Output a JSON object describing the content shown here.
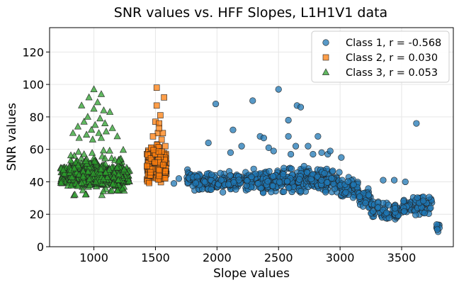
{
  "chart_data": {
    "type": "scatter",
    "title": "SNR values vs. HFF Slopes, L1H1V1 data",
    "xlabel": "Slope values",
    "ylabel": "SNR values",
    "xlim": [
      640,
      3920
    ],
    "ylim": [
      0,
      135
    ],
    "xticks": [
      1000,
      1500,
      2000,
      2500,
      3000,
      3500
    ],
    "yticks": [
      0,
      20,
      40,
      60,
      80,
      100,
      120
    ],
    "grid": true,
    "legend_position": "top-right",
    "series": [
      {
        "name": "Class 1, r = -0.568",
        "marker": "circle",
        "color": "#1f77b4",
        "clusters": [
          {
            "x_range": [
              1750,
              1800
            ],
            "y_range": [
              35,
              50
            ],
            "n": 20
          },
          {
            "x_range": [
              1800,
              1990
            ],
            "y_range": [
              33,
              47
            ],
            "n": 90
          },
          {
            "x_range": [
              2000,
              2200
            ],
            "y_range": [
              32,
              48
            ],
            "n": 80
          },
          {
            "x_range": [
              2230,
              2500
            ],
            "y_range": [
              32,
              50
            ],
            "n": 130
          },
          {
            "x_range": [
              2500,
              2750
            ],
            "y_range": [
              31,
              52
            ],
            "n": 110
          },
          {
            "x_range": [
              2750,
              3000
            ],
            "y_range": [
              31,
              50
            ],
            "n": 100
          },
          {
            "x_range": [
              3000,
              3150
            ],
            "y_range": [
              27,
              44
            ],
            "n": 60
          },
          {
            "x_range": [
              3150,
              3250
            ],
            "y_range": [
              20,
              38
            ],
            "n": 40
          },
          {
            "x_range": [
              3250,
              3480
            ],
            "y_range": [
              12,
              30
            ],
            "n": 70
          },
          {
            "x_range": [
              3500,
              3600
            ],
            "y_range": [
              17,
              33
            ],
            "n": 35
          },
          {
            "x_range": [
              3600,
              3750
            ],
            "y_range": [
              16,
              35
            ],
            "n": 45
          },
          {
            "x_range": [
              3780,
              3810
            ],
            "y_range": [
              7,
              16
            ],
            "n": 8
          }
        ],
        "points": [
          [
            1990,
            88
          ],
          [
            2130,
            72
          ],
          [
            2290,
            90
          ],
          [
            2500,
            97
          ],
          [
            2650,
            87
          ],
          [
            2680,
            86
          ],
          [
            3620,
            76
          ],
          [
            2350,
            68
          ],
          [
            2380,
            67
          ],
          [
            2580,
            68
          ],
          [
            2820,
            68
          ],
          [
            2580,
            78
          ],
          [
            2200,
            62
          ],
          [
            2420,
            61
          ],
          [
            2640,
            62
          ],
          [
            2850,
            58
          ],
          [
            2900,
            57
          ],
          [
            1930,
            64
          ],
          [
            2110,
            58
          ],
          [
            2460,
            59
          ],
          [
            2600,
            57
          ],
          [
            3350,
            41
          ],
          [
            3440,
            41
          ],
          [
            3530,
            40
          ],
          [
            3010,
            55
          ],
          [
            2740,
            62
          ],
          [
            1650,
            39
          ],
          [
            1690,
            42
          ],
          [
            2780,
            57
          ],
          [
            2920,
            59
          ]
        ]
      },
      {
        "name": "Class 2, r = 0.030",
        "marker": "square",
        "color": "#ff7f0e",
        "clusters": [
          {
            "x_range": [
              1430,
              1590
            ],
            "y_range": [
              35,
              65
            ],
            "n": 220
          }
        ],
        "points": [
          [
            1510,
            98
          ],
          [
            1570,
            92
          ],
          [
            1510,
            87
          ],
          [
            1540,
            81
          ],
          [
            1500,
            77
          ],
          [
            1530,
            76
          ],
          [
            1520,
            70
          ],
          [
            1560,
            70
          ],
          [
            1480,
            68
          ],
          [
            1550,
            66
          ],
          [
            1530,
            73
          ],
          [
            1580,
            62
          ]
        ]
      },
      {
        "name": "Class 3, r = 0.053",
        "marker": "triangle",
        "color": "#2ca02c",
        "clusters": [
          {
            "x_range": [
              730,
              1290
            ],
            "y_range": [
              33,
              55
            ],
            "n": 420
          },
          {
            "x_range": [
              800,
              1250
            ],
            "y_range": [
              27,
              63
            ],
            "n": 180
          }
        ],
        "points": [
          [
            1000,
            97
          ],
          [
            960,
            92
          ],
          [
            1060,
            94
          ],
          [
            1030,
            89
          ],
          [
            900,
            87
          ],
          [
            1000,
            85
          ],
          [
            1080,
            84
          ],
          [
            1130,
            83
          ],
          [
            950,
            80
          ],
          [
            1050,
            79
          ],
          [
            920,
            77
          ],
          [
            1090,
            76
          ],
          [
            870,
            74
          ],
          [
            1010,
            75
          ],
          [
            1150,
            73
          ],
          [
            980,
            72
          ],
          [
            1100,
            71
          ],
          [
            830,
            70
          ],
          [
            1040,
            70
          ],
          [
            940,
            69
          ],
          [
            1190,
            68
          ],
          [
            880,
            67
          ],
          [
            1060,
            67
          ],
          [
            990,
            66
          ]
        ]
      }
    ]
  }
}
